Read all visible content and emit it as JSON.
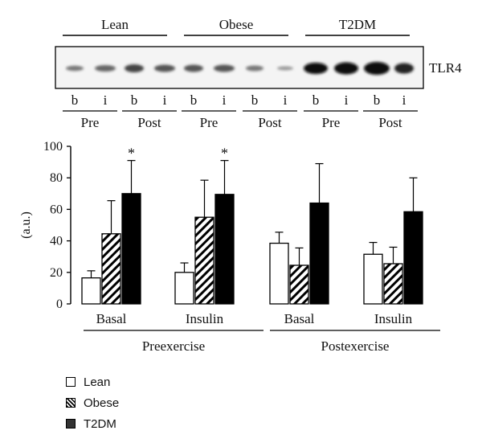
{
  "blot": {
    "groups": [
      "Lean",
      "Obese",
      "T2DM"
    ],
    "protein_label": "TLR4",
    "lane_labels": [
      "b",
      "i",
      "b",
      "i",
      "b",
      "i",
      "b",
      "i",
      "b",
      "i",
      "b",
      "i"
    ],
    "timepoint_labels": [
      "Pre",
      "Post",
      "Pre",
      "Post",
      "Pre",
      "Post"
    ]
  },
  "chart_data": {
    "type": "bar",
    "ylabel": "(a.u.)",
    "ylim": [
      0,
      100
    ],
    "yticks": [
      0,
      20,
      40,
      60,
      80,
      100
    ],
    "categories": [
      "Basal",
      "Insulin",
      "Basal",
      "Insulin"
    ],
    "category_groups": [
      {
        "label": "Preexercise",
        "categories": [
          "Basal",
          "Insulin"
        ]
      },
      {
        "label": "Postexercise",
        "categories": [
          "Basal",
          "Insulin"
        ]
      }
    ],
    "series": [
      {
        "name": "Lean",
        "values": [
          16.5,
          20,
          38.5,
          31.5
        ],
        "errors": [
          4.5,
          6,
          7,
          7.5
        ]
      },
      {
        "name": "Obese",
        "values": [
          44.5,
          55,
          24.5,
          25.5
        ],
        "errors": [
          21,
          23.5,
          11,
          10.5
        ]
      },
      {
        "name": "T2DM",
        "values": [
          70,
          69.5,
          64,
          58.5
        ],
        "errors": [
          21,
          21.5,
          25,
          21.5
        ]
      }
    ],
    "annotations": [
      {
        "text": "*",
        "category_index": 0,
        "series": "T2DM"
      },
      {
        "text": "*",
        "category_index": 1,
        "series": "T2DM"
      }
    ],
    "legend_position": "bottom-left",
    "grid": false
  }
}
